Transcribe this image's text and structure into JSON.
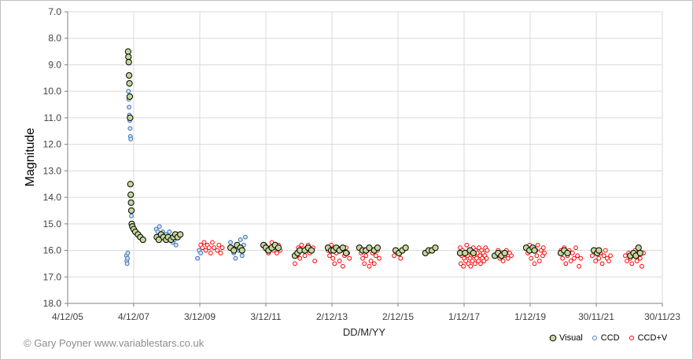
{
  "chart_data": {
    "type": "scatter",
    "title": "",
    "xlabel": "DD/M/YY",
    "ylabel": "Magnitude",
    "ylim": [
      7.0,
      18.0
    ],
    "y_inverted": true,
    "y_ticks": [
      "7.0",
      "8.0",
      "9.0",
      "10.0",
      "11.0",
      "12.0",
      "13.0",
      "14.0",
      "15.0",
      "16.0",
      "17.0",
      "18.0"
    ],
    "x_range_years": [
      2005.92,
      2023.92
    ],
    "x_ticks": [
      {
        "label": "4/12/05",
        "year": 2005.92
      },
      {
        "label": "4/12/07",
        "year": 2007.92
      },
      {
        "label": "3/12/09",
        "year": 2009.92
      },
      {
        "label": "3/12/11",
        "year": 2011.92
      },
      {
        "label": "2/12/13",
        "year": 2013.92
      },
      {
        "label": "2/12/15",
        "year": 2015.92
      },
      {
        "label": "1/12/17",
        "year": 2017.92
      },
      {
        "label": "1/12/19",
        "year": 2019.92
      },
      {
        "label": "30/11/21",
        "year": 2021.92
      },
      {
        "label": "30/11/23",
        "year": 2023.92
      }
    ],
    "legend": [
      "Visual",
      "CCD",
      "CCD+V"
    ],
    "legend_position": "bottom-right",
    "colors": {
      "visual_fill": "#c4d79b",
      "ccd_fill": "#4f81bd",
      "ccdv_stroke": "#ff0000",
      "grid": "#d9d9d9",
      "axis": "#808080"
    },
    "series": [
      {
        "name": "Visual",
        "points": [
          [
            7.75,
            8.5
          ],
          [
            7.76,
            8.7
          ],
          [
            7.77,
            8.9
          ],
          [
            7.78,
            9.4
          ],
          [
            7.79,
            9.7
          ],
          [
            7.8,
            10.2
          ],
          [
            7.81,
            11.0
          ],
          [
            7.82,
            13.5
          ],
          [
            7.83,
            13.9
          ],
          [
            7.84,
            14.2
          ],
          [
            7.85,
            14.5
          ],
          [
            7.86,
            15.0
          ],
          [
            7.88,
            15.1
          ],
          [
            7.92,
            15.2
          ],
          [
            7.97,
            15.3
          ],
          [
            8.05,
            15.4
          ],
          [
            8.12,
            15.5
          ],
          [
            8.2,
            15.6
          ],
          [
            8.62,
            15.5
          ],
          [
            8.68,
            15.6
          ],
          [
            8.75,
            15.4
          ],
          [
            8.82,
            15.5
          ],
          [
            8.9,
            15.6
          ],
          [
            8.96,
            15.5
          ],
          [
            9.05,
            15.6
          ],
          [
            9.12,
            15.5
          ],
          [
            9.18,
            15.4
          ],
          [
            9.25,
            15.5
          ],
          [
            9.33,
            15.4
          ],
          [
            10.85,
            15.9
          ],
          [
            10.95,
            16.0
          ],
          [
            11.05,
            15.8
          ],
          [
            11.15,
            15.9
          ],
          [
            11.2,
            16.0
          ],
          [
            11.85,
            15.8
          ],
          [
            11.92,
            15.9
          ],
          [
            12.0,
            16.0
          ],
          [
            12.1,
            15.9
          ],
          [
            12.2,
            15.8
          ],
          [
            12.3,
            15.9
          ],
          [
            12.8,
            16.2
          ],
          [
            12.88,
            16.1
          ],
          [
            12.95,
            16.0
          ],
          [
            13.1,
            16.0
          ],
          [
            13.2,
            15.9
          ],
          [
            13.3,
            16.0
          ],
          [
            13.8,
            15.9
          ],
          [
            13.9,
            16.0
          ],
          [
            13.97,
            16.0
          ],
          [
            14.05,
            15.9
          ],
          [
            14.15,
            16.0
          ],
          [
            14.25,
            15.9
          ],
          [
            14.35,
            16.1
          ],
          [
            14.75,
            15.9
          ],
          [
            14.85,
            16.0
          ],
          [
            14.95,
            16.0
          ],
          [
            15.05,
            15.9
          ],
          [
            15.2,
            16.0
          ],
          [
            15.3,
            15.9
          ],
          [
            15.85,
            16.0
          ],
          [
            15.95,
            16.1
          ],
          [
            16.05,
            16.0
          ],
          [
            16.15,
            15.9
          ],
          [
            16.75,
            16.1
          ],
          [
            16.85,
            16.0
          ],
          [
            16.95,
            16.0
          ],
          [
            17.05,
            15.9
          ],
          [
            17.8,
            16.1
          ],
          [
            17.95,
            16.1
          ],
          [
            18.1,
            16.0
          ],
          [
            18.2,
            16.1
          ],
          [
            18.85,
            16.2
          ],
          [
            18.95,
            16.1
          ],
          [
            19.05,
            16.2
          ],
          [
            19.15,
            16.1
          ],
          [
            19.8,
            15.9
          ],
          [
            19.9,
            16.0
          ],
          [
            20.0,
            15.9
          ],
          [
            20.05,
            16.0
          ],
          [
            20.85,
            16.1
          ],
          [
            20.95,
            16.0
          ],
          [
            21.05,
            16.1
          ],
          [
            21.85,
            16.0
          ],
          [
            21.95,
            16.1
          ],
          [
            22.0,
            16.0
          ],
          [
            22.95,
            16.2
          ],
          [
            23.05,
            16.1
          ],
          [
            23.12,
            16.2
          ],
          [
            23.2,
            15.9
          ],
          [
            23.25,
            16.1
          ]
        ]
      },
      {
        "name": "CCD",
        "points": [
          [
            7.7,
            16.2
          ],
          [
            7.71,
            16.4
          ],
          [
            7.72,
            16.5
          ],
          [
            7.73,
            16.3
          ],
          [
            7.74,
            16.1
          ],
          [
            7.76,
            10.0
          ],
          [
            7.77,
            10.3
          ],
          [
            7.78,
            10.6
          ],
          [
            7.79,
            10.9
          ],
          [
            7.8,
            11.1
          ],
          [
            7.81,
            11.4
          ],
          [
            7.82,
            11.7
          ],
          [
            7.83,
            11.8
          ],
          [
            7.84,
            14.5
          ],
          [
            7.85,
            14.7
          ],
          [
            7.87,
            15.1
          ],
          [
            7.9,
            15.2
          ],
          [
            7.95,
            15.3
          ],
          [
            8.6,
            15.2
          ],
          [
            8.65,
            15.3
          ],
          [
            8.7,
            15.1
          ],
          [
            8.75,
            15.4
          ],
          [
            8.8,
            15.3
          ],
          [
            8.85,
            15.5
          ],
          [
            8.9,
            15.4
          ],
          [
            8.95,
            15.6
          ],
          [
            9.0,
            15.3
          ],
          [
            9.05,
            15.5
          ],
          [
            9.1,
            15.7
          ],
          [
            9.15,
            15.6
          ],
          [
            9.2,
            15.8
          ],
          [
            9.85,
            16.3
          ],
          [
            9.9,
            16.0
          ],
          [
            9.95,
            16.1
          ],
          [
            10.85,
            15.7
          ],
          [
            10.9,
            15.9
          ],
          [
            10.95,
            16.1
          ],
          [
            11.0,
            16.3
          ],
          [
            11.05,
            15.8
          ],
          [
            11.1,
            16.0
          ],
          [
            11.15,
            15.6
          ],
          [
            11.2,
            16.2
          ],
          [
            11.25,
            15.8
          ],
          [
            11.3,
            15.5
          ]
        ]
      },
      {
        "name": "CCD+V",
        "points": [
          [
            9.95,
            15.8
          ],
          [
            10.0,
            15.9
          ],
          [
            10.05,
            15.7
          ],
          [
            10.1,
            16.0
          ],
          [
            10.15,
            15.8
          ],
          [
            10.2,
            15.9
          ],
          [
            10.25,
            16.1
          ],
          [
            10.3,
            15.7
          ],
          [
            10.35,
            15.9
          ],
          [
            10.45,
            16.0
          ],
          [
            10.5,
            15.8
          ],
          [
            10.55,
            16.1
          ],
          [
            10.6,
            15.9
          ],
          [
            11.9,
            15.8
          ],
          [
            11.95,
            16.0
          ],
          [
            12.0,
            16.1
          ],
          [
            12.05,
            15.9
          ],
          [
            12.1,
            15.7
          ],
          [
            12.15,
            16.0
          ],
          [
            12.2,
            15.9
          ],
          [
            12.25,
            16.1
          ],
          [
            12.3,
            15.8
          ],
          [
            12.35,
            16.0
          ],
          [
            12.8,
            16.5
          ],
          [
            12.85,
            16.2
          ],
          [
            12.9,
            15.9
          ],
          [
            12.95,
            16.3
          ],
          [
            13.0,
            15.8
          ],
          [
            13.05,
            16.0
          ],
          [
            13.1,
            16.2
          ],
          [
            13.15,
            15.9
          ],
          [
            13.2,
            15.8
          ],
          [
            13.25,
            16.1
          ],
          [
            13.3,
            16.0
          ],
          [
            13.35,
            15.9
          ],
          [
            13.4,
            16.4
          ],
          [
            13.8,
            16.0
          ],
          [
            13.85,
            16.2
          ],
          [
            13.9,
            15.8
          ],
          [
            13.95,
            16.3
          ],
          [
            14.0,
            16.5
          ],
          [
            14.05,
            16.1
          ],
          [
            14.1,
            15.9
          ],
          [
            14.15,
            16.4
          ],
          [
            14.2,
            16.0
          ],
          [
            14.25,
            16.6
          ],
          [
            14.3,
            16.2
          ],
          [
            14.35,
            15.9
          ],
          [
            14.4,
            16.1
          ],
          [
            14.45,
            16.3
          ],
          [
            14.8,
            16.1
          ],
          [
            14.85,
            16.3
          ],
          [
            14.9,
            16.5
          ],
          [
            14.95,
            16.2
          ],
          [
            15.0,
            16.0
          ],
          [
            15.05,
            16.6
          ],
          [
            15.1,
            16.4
          ],
          [
            15.15,
            16.1
          ],
          [
            15.2,
            16.5
          ],
          [
            15.25,
            16.2
          ],
          [
            15.3,
            16.0
          ],
          [
            15.35,
            16.3
          ],
          [
            15.8,
            16.2
          ],
          [
            15.85,
            16.0
          ],
          [
            15.95,
            16.1
          ],
          [
            16.0,
            16.3
          ],
          [
            17.8,
            15.9
          ],
          [
            17.82,
            16.5
          ],
          [
            17.85,
            16.2
          ],
          [
            17.87,
            16.0
          ],
          [
            17.9,
            16.6
          ],
          [
            17.92,
            16.3
          ],
          [
            17.95,
            16.1
          ],
          [
            17.97,
            16.4
          ],
          [
            18.0,
            15.8
          ],
          [
            18.02,
            16.2
          ],
          [
            18.05,
            16.5
          ],
          [
            18.07,
            16.0
          ],
          [
            18.1,
            16.3
          ],
          [
            18.12,
            16.6
          ],
          [
            18.15,
            16.1
          ],
          [
            18.17,
            16.4
          ],
          [
            18.2,
            15.9
          ],
          [
            18.22,
            16.2
          ],
          [
            18.25,
            16.5
          ],
          [
            18.27,
            16.0
          ],
          [
            18.3,
            16.3
          ],
          [
            18.32,
            16.1
          ],
          [
            18.35,
            16.4
          ],
          [
            18.37,
            15.9
          ],
          [
            18.4,
            16.2
          ],
          [
            18.42,
            16.5
          ],
          [
            18.45,
            16.0
          ],
          [
            18.47,
            16.3
          ],
          [
            18.5,
            16.1
          ],
          [
            18.52,
            16.4
          ],
          [
            18.55,
            16.2
          ],
          [
            18.57,
            15.9
          ],
          [
            18.6,
            16.3
          ],
          [
            18.62,
            16.0
          ],
          [
            18.9,
            16.2
          ],
          [
            18.95,
            16.0
          ],
          [
            19.0,
            16.3
          ],
          [
            19.05,
            16.1
          ],
          [
            19.1,
            16.4
          ],
          [
            19.15,
            16.2
          ],
          [
            19.2,
            16.0
          ],
          [
            19.25,
            16.3
          ],
          [
            19.3,
            16.1
          ],
          [
            19.35,
            16.2
          ],
          [
            19.85,
            16.1
          ],
          [
            19.9,
            15.8
          ],
          [
            19.95,
            16.3
          ],
          [
            20.0,
            15.9
          ],
          [
            20.05,
            16.5
          ],
          [
            20.1,
            16.0
          ],
          [
            20.12,
            16.2
          ],
          [
            20.15,
            15.8
          ],
          [
            20.2,
            16.4
          ],
          [
            20.25,
            16.0
          ],
          [
            20.3,
            16.2
          ],
          [
            20.32,
            15.9
          ],
          [
            20.35,
            16.1
          ],
          [
            20.85,
            16.0
          ],
          [
            20.9,
            16.3
          ],
          [
            20.95,
            15.9
          ],
          [
            21.0,
            16.5
          ],
          [
            21.05,
            16.2
          ],
          [
            21.1,
            16.0
          ],
          [
            21.15,
            16.4
          ],
          [
            21.2,
            16.1
          ],
          [
            21.25,
            16.3
          ],
          [
            21.3,
            15.9
          ],
          [
            21.35,
            16.2
          ],
          [
            21.4,
            16.6
          ],
          [
            21.45,
            16.3
          ],
          [
            21.8,
            16.2
          ],
          [
            21.85,
            16.0
          ],
          [
            21.9,
            16.4
          ],
          [
            22.0,
            16.3
          ],
          [
            22.05,
            16.1
          ],
          [
            22.1,
            16.5
          ],
          [
            22.15,
            16.2
          ],
          [
            22.2,
            16.0
          ],
          [
            22.25,
            16.3
          ],
          [
            22.3,
            16.4
          ],
          [
            22.35,
            16.2
          ],
          [
            22.8,
            16.2
          ],
          [
            22.85,
            16.4
          ],
          [
            22.9,
            16.1
          ],
          [
            22.95,
            16.3
          ],
          [
            23.0,
            16.5
          ],
          [
            23.05,
            16.2
          ],
          [
            23.1,
            16.0
          ],
          [
            23.15,
            16.4
          ],
          [
            23.2,
            16.2
          ],
          [
            23.25,
            16.3
          ],
          [
            23.3,
            16.6
          ],
          [
            23.35,
            16.1
          ]
        ]
      }
    ]
  },
  "credit": "© Gary Poyner www.variablestars.co.uk"
}
